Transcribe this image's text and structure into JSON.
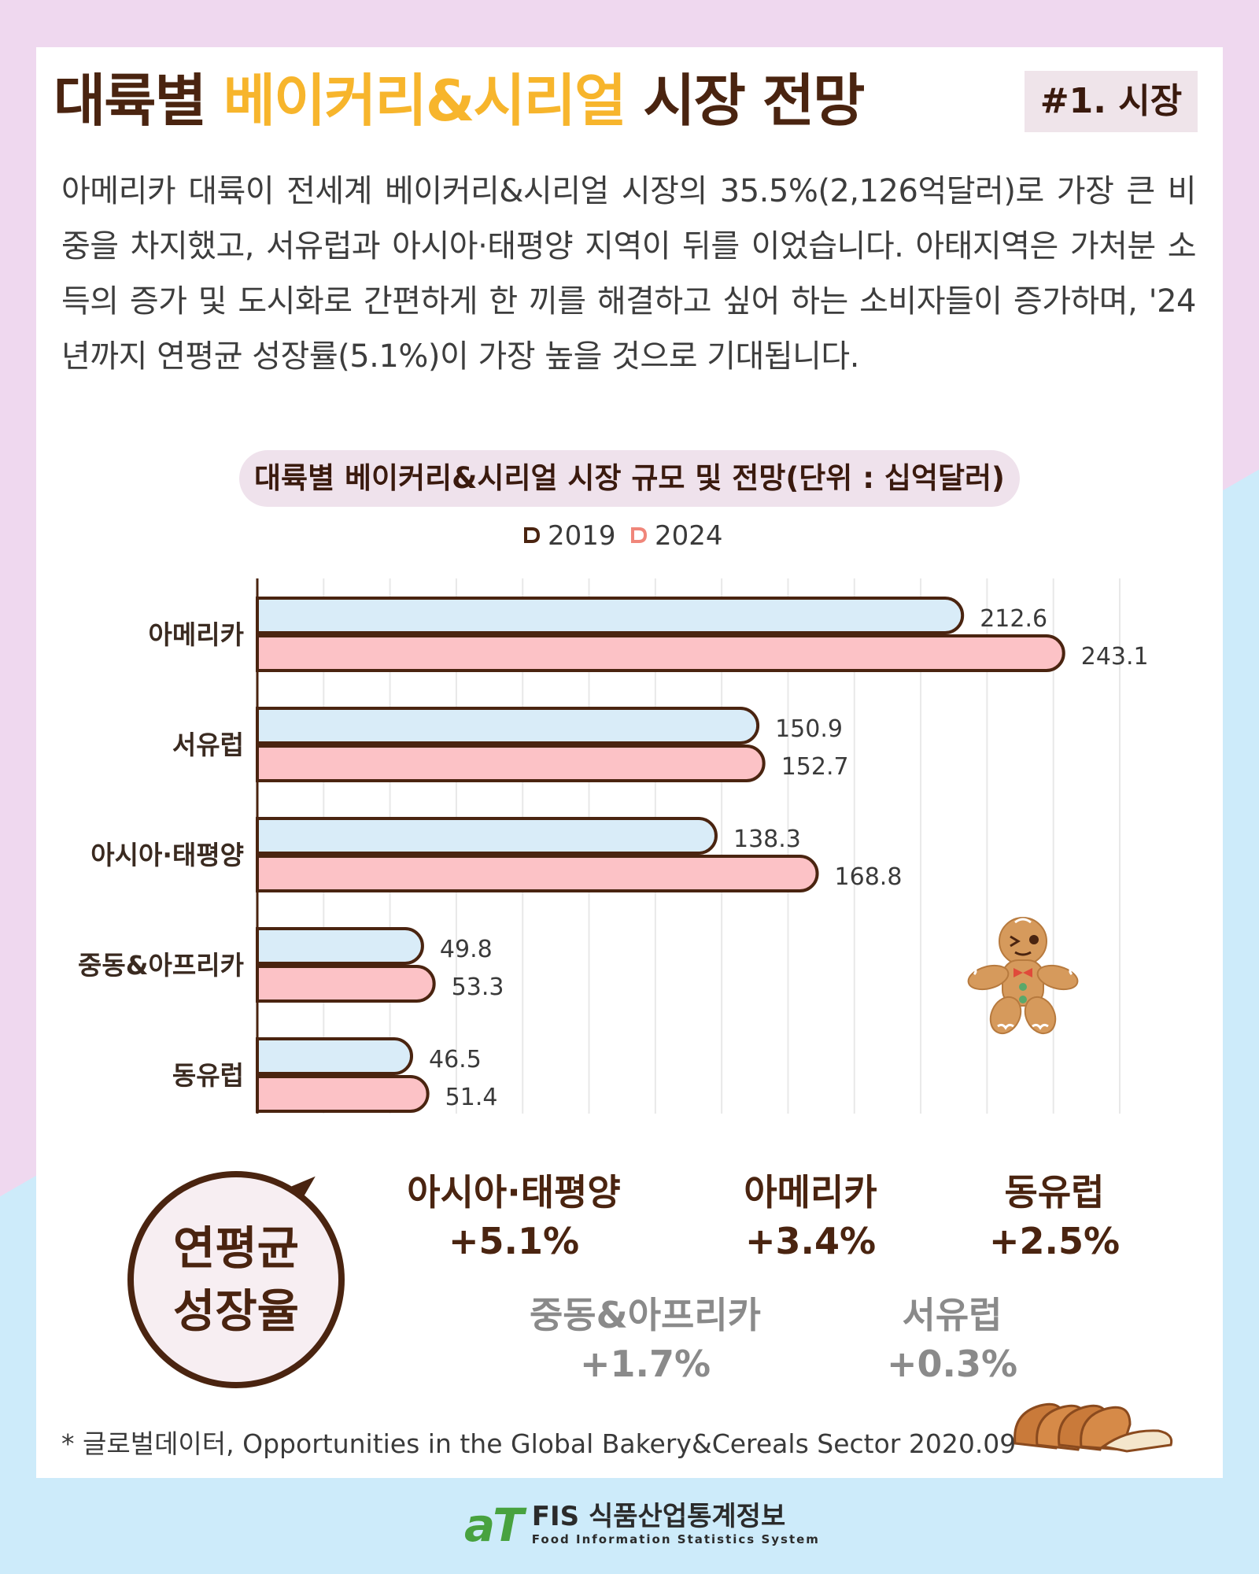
{
  "header": {
    "title_part1": "대륙별 ",
    "title_highlight": "베이커리&시리얼",
    "title_part2": " 시장 전망",
    "tag": "#1. 시장"
  },
  "intro_text": "아메리카 대륙이 전세계 베이커리&시리얼 시장의 35.5%(2,126억달러)로 가장 큰 비중을 차지했고, 서유럽과 아시아·태평양 지역이 뒤를 이었습니다. 아태지역은 가처분 소득의 증가 및 도시화로 간편하게 한 끼를 해결하고 싶어 하는 소비자들이 증가하며, '24년까지 연평균 성장률(5.1%)이 가장 높을 것으로 기대됩니다.",
  "chart_data": {
    "type": "bar",
    "orientation": "horizontal",
    "title": "대륙별 베이커리&시리얼 시장 규모 및 전망(단위 : 십억달러)",
    "categories": [
      "아메리카",
      "서유럽",
      "아시아·태평양",
      "중동&아프리카",
      "동유럽"
    ],
    "series": [
      {
        "name": "2019",
        "values": [
          212.6,
          150.9,
          138.3,
          49.8,
          46.5
        ],
        "color": "#d9ecf8"
      },
      {
        "name": "2024",
        "values": [
          243.1,
          152.7,
          168.8,
          53.3,
          51.4
        ],
        "color": "#fcc2c6"
      }
    ],
    "xlim": [
      0,
      260
    ],
    "grid": true,
    "legend_position": "top"
  },
  "colors": {
    "brown": "#4a2410",
    "yellow": "#f7b52c",
    "bar_2019": "#d9ecf8",
    "bar_2024": "#fcc2c6",
    "legend_marker_2019": "#4a2410",
    "legend_marker_2024": "#f0867a"
  },
  "growth": {
    "label_line1": "연평균",
    "label_line2": "성장율",
    "items": [
      {
        "name": "아시아·태평양",
        "value": "+5.1%"
      },
      {
        "name": "아메리카",
        "value": "+3.4%"
      },
      {
        "name": "동유럽",
        "value": "+2.5%"
      },
      {
        "name": "중동&아프리카",
        "value": "+1.7%"
      },
      {
        "name": "서유럽",
        "value": "+0.3%"
      }
    ]
  },
  "source": "* 글로벌데이터, Opportunities in the Global Bakery&Cereals Sector 2020.09",
  "footer": {
    "logo_mark": "aT",
    "name": "FIS 식품산업통계정보",
    "subtitle": "Food Information Statistics System"
  },
  "icons": {
    "gingerbread": "gingerbread-man-icon",
    "bread": "sliced-bread-icon",
    "legend_marker": "rounded-d-marker-icon"
  }
}
